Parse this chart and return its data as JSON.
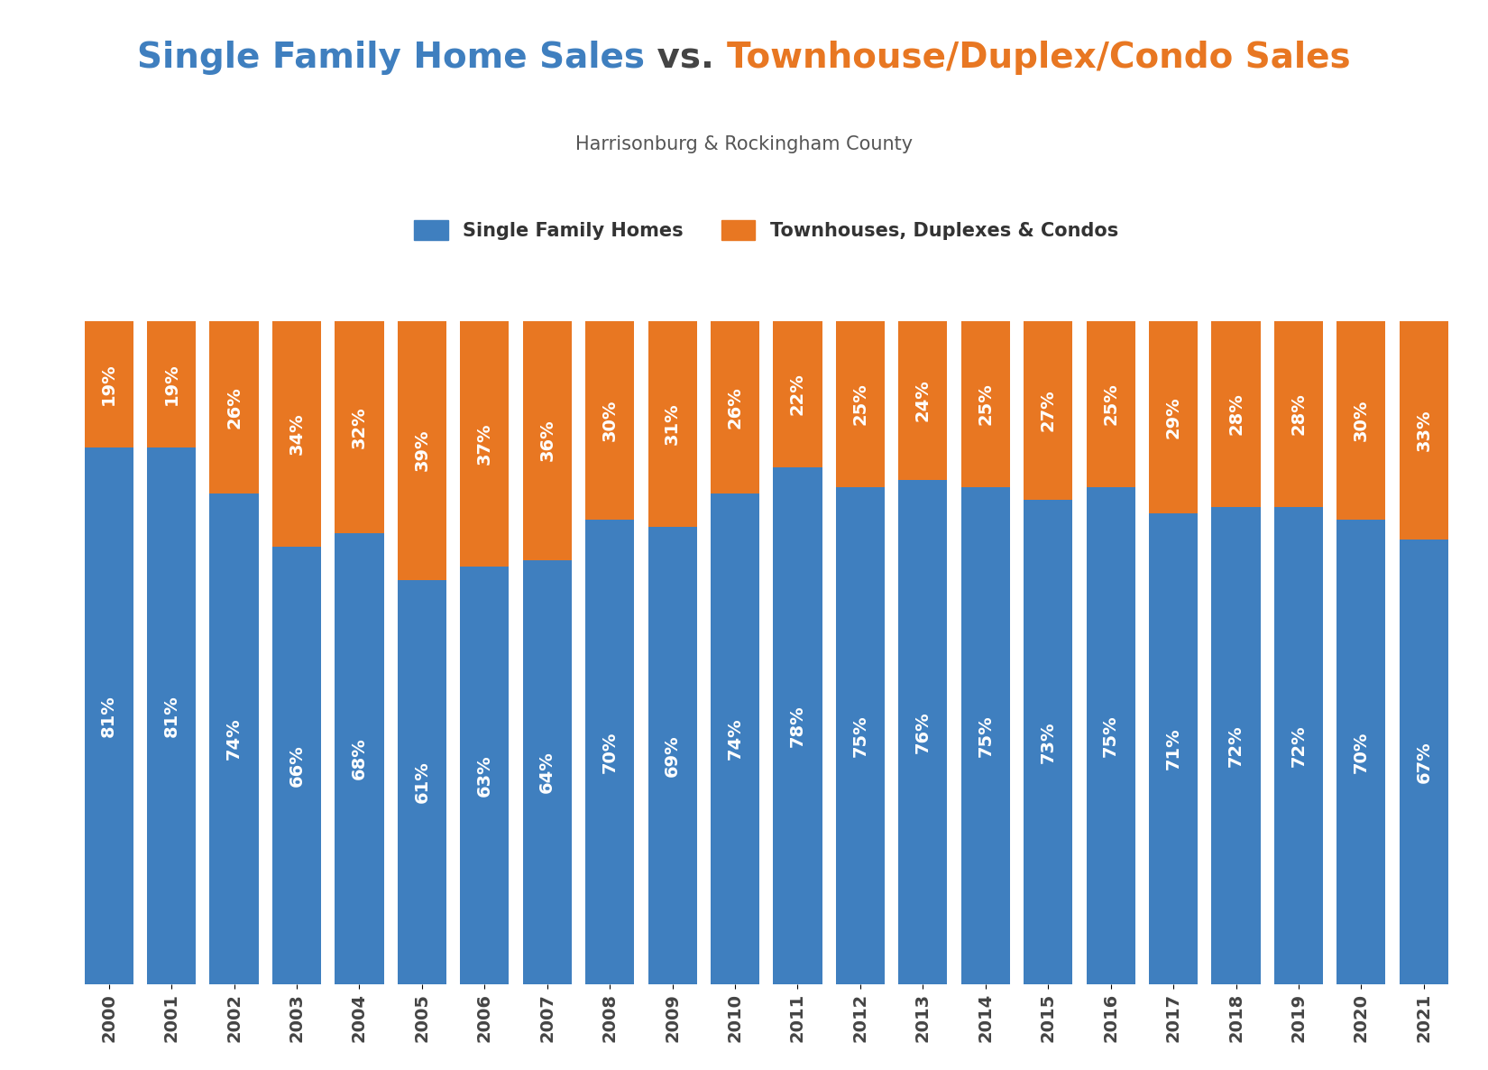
{
  "years": [
    "2000",
    "2001",
    "2002",
    "2003",
    "2004",
    "2005",
    "2006",
    "2007",
    "2008",
    "2009",
    "2010",
    "2011",
    "2012",
    "2013",
    "2014",
    "2015",
    "2016",
    "2017",
    "2018",
    "2019",
    "2020",
    "2021"
  ],
  "sfh_pct": [
    81,
    81,
    74,
    66,
    68,
    61,
    63,
    64,
    70,
    69,
    74,
    78,
    75,
    76,
    75,
    73,
    75,
    71,
    72,
    72,
    70,
    67
  ],
  "tdc_pct": [
    19,
    19,
    26,
    34,
    32,
    39,
    37,
    36,
    30,
    31,
    26,
    22,
    25,
    24,
    25,
    27,
    25,
    29,
    28,
    28,
    30,
    33
  ],
  "sfh_color": "#3F7FBF",
  "tdc_color": "#E87722",
  "title_sfh": "Single Family Home Sales",
  "title_vs": " vs. ",
  "title_tdc": "Townhouse/Duplex/Condo Sales",
  "subtitle": "Harrisonburg & Rockingham County",
  "legend_sfh": "Single Family Homes",
  "legend_tdc": "Townhouses, Duplexes & Condos",
  "title_fontsize": 28,
  "subtitle_fontsize": 15,
  "label_fontsize": 14,
  "tick_fontsize": 14,
  "legend_fontsize": 15,
  "bar_text_color": "#FFFFFF",
  "background_color": "#FFFFFF",
  "grid_color": "#DDDDDD",
  "title_color_blue": "#3F7FBF",
  "title_color_vs": "#444444",
  "title_color_orange": "#E87722"
}
